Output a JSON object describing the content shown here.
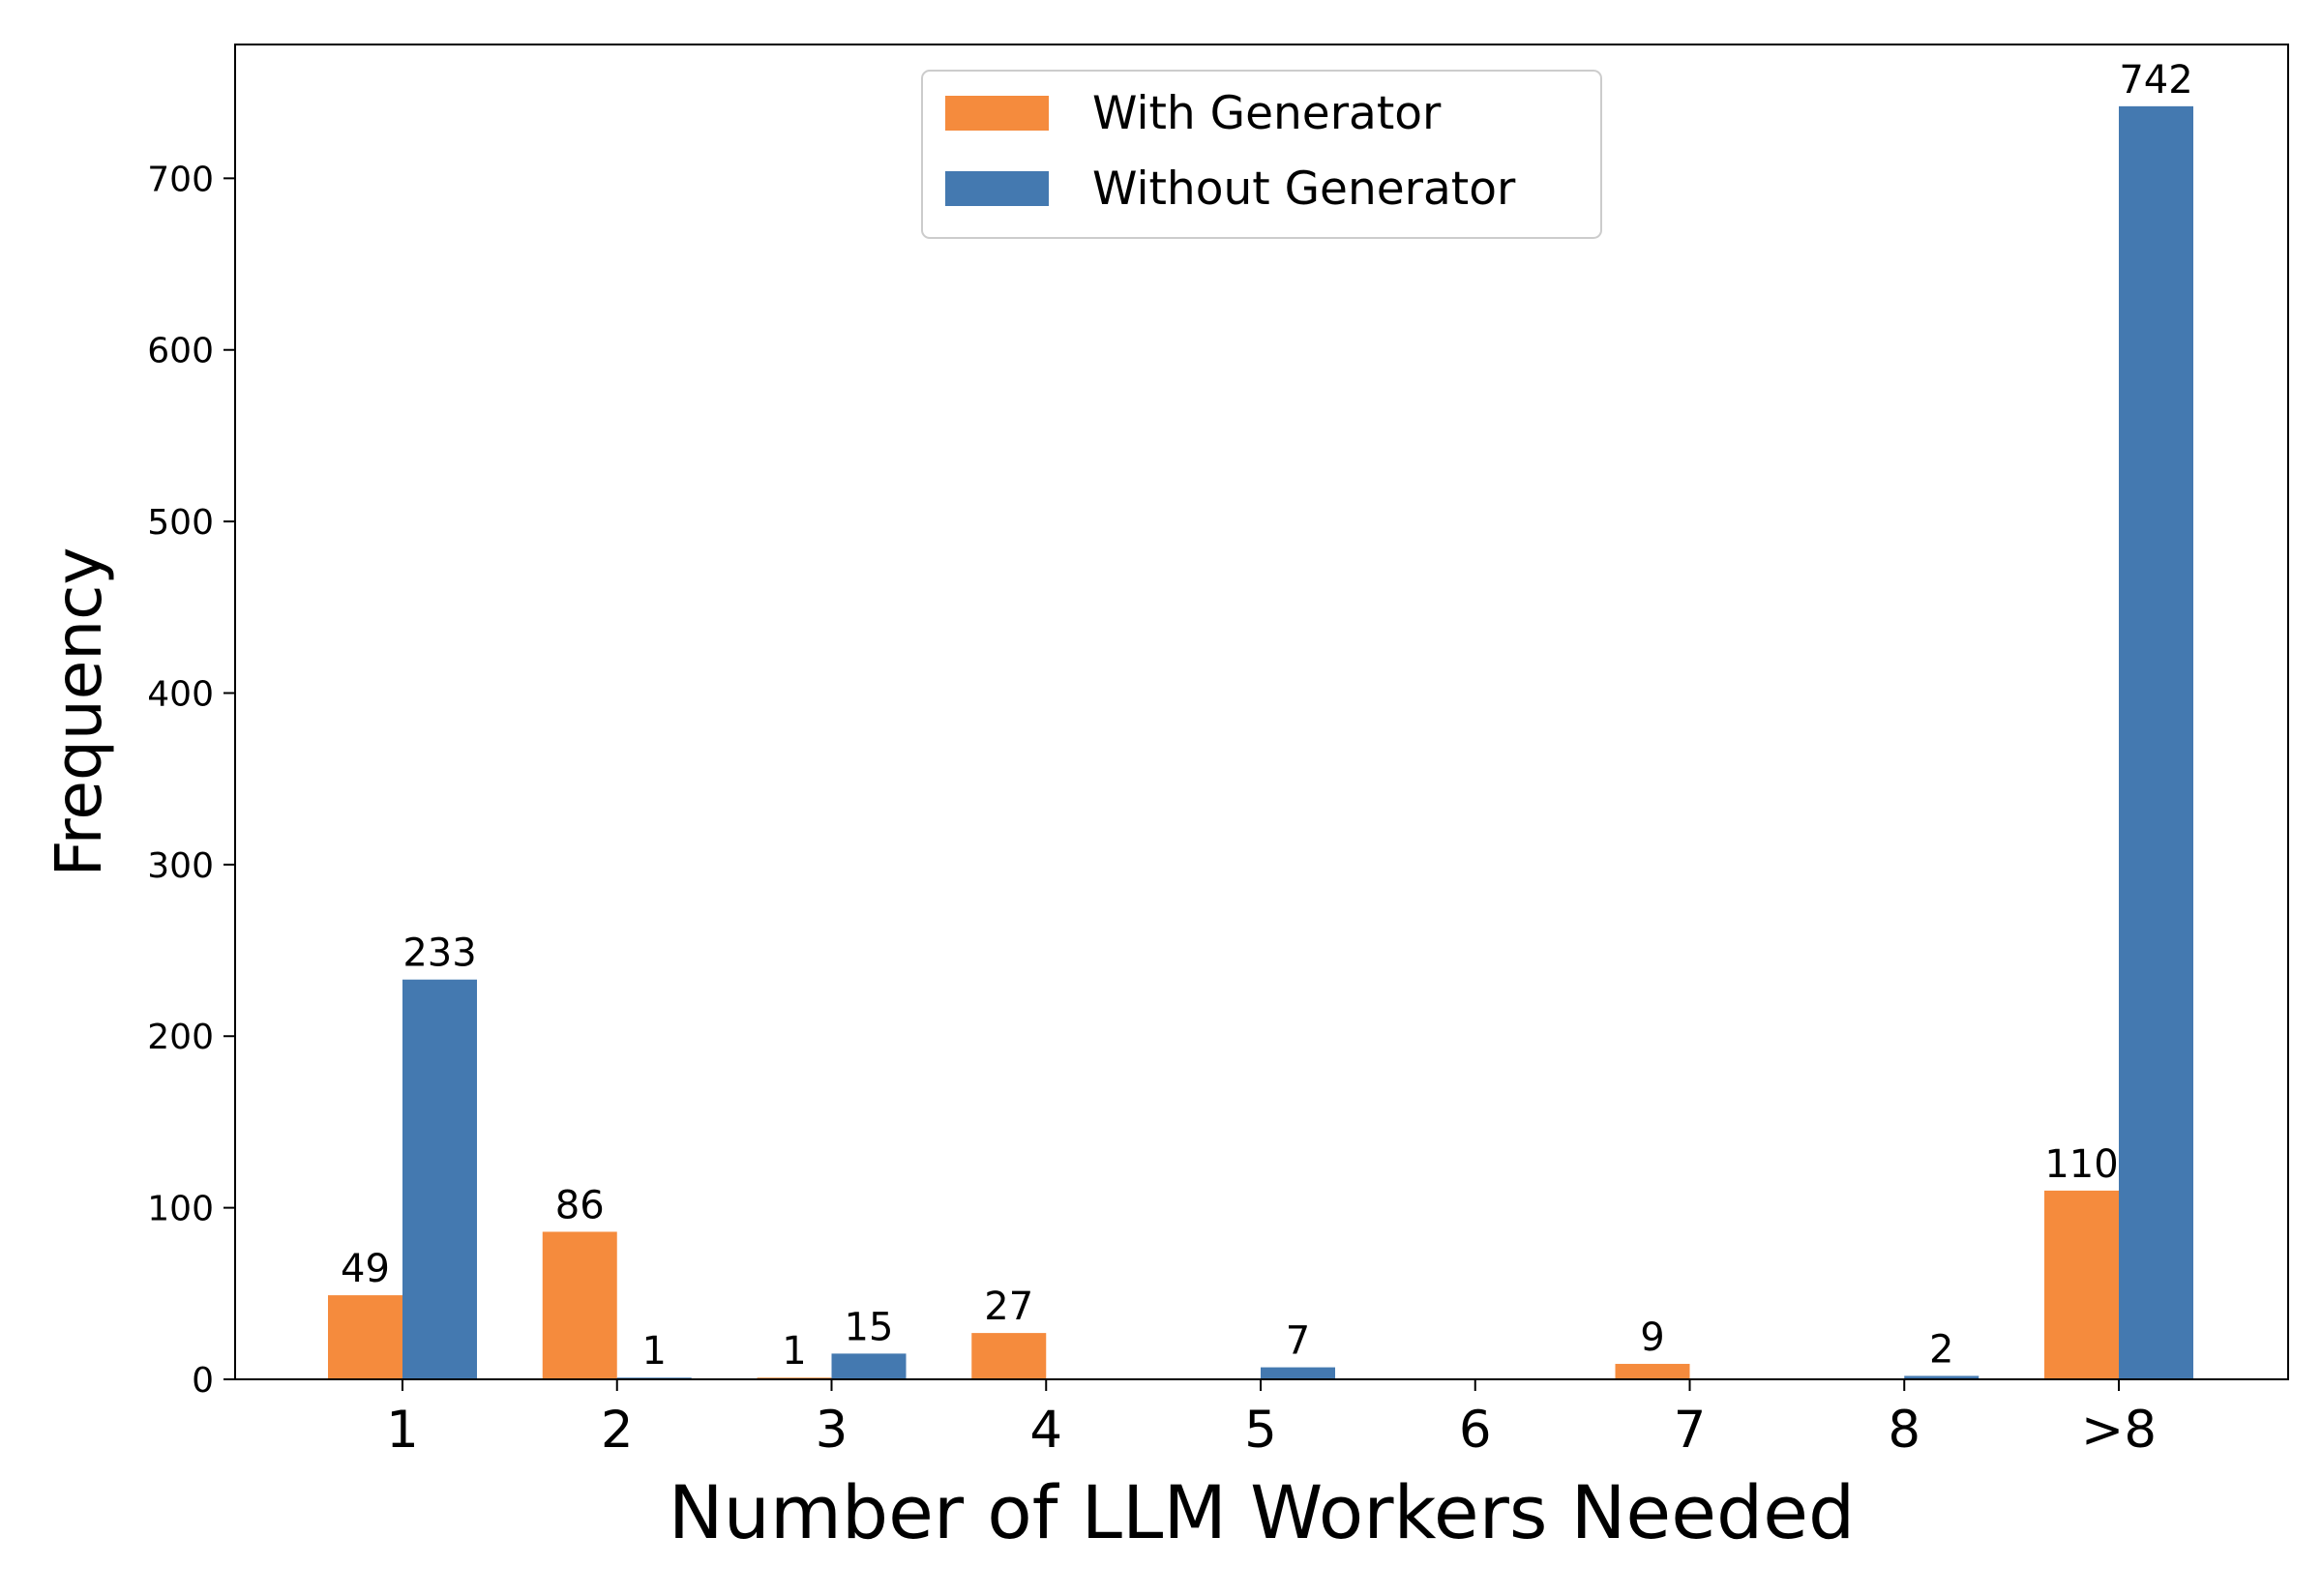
{
  "chart_data": {
    "type": "bar",
    "xlabel": "Number of LLM Workers Needed",
    "ylabel": "Frequency",
    "categories": [
      "1",
      "2",
      "3",
      "4",
      "5",
      "6",
      "7",
      "8",
      ">8"
    ],
    "series": [
      {
        "name": "With Generator",
        "color": "#F58B3D",
        "values": [
          49,
          86,
          1,
          27,
          0,
          0,
          9,
          0,
          110
        ],
        "labels": [
          "49",
          "86",
          "1",
          "27",
          "",
          "",
          "9",
          "",
          "110"
        ]
      },
      {
        "name": "Without Generator",
        "color": "#4479B0",
        "values": [
          233,
          1,
          15,
          0,
          7,
          0,
          0,
          2,
          742
        ],
        "labels": [
          "233",
          "1",
          "15",
          "",
          "7",
          "",
          "",
          "2",
          "742"
        ]
      }
    ],
    "ylim": [
      0,
      778
    ],
    "yticks": [
      0,
      100,
      200,
      300,
      400,
      500,
      600,
      700
    ],
    "grid": false,
    "legend_position": "top-center"
  }
}
